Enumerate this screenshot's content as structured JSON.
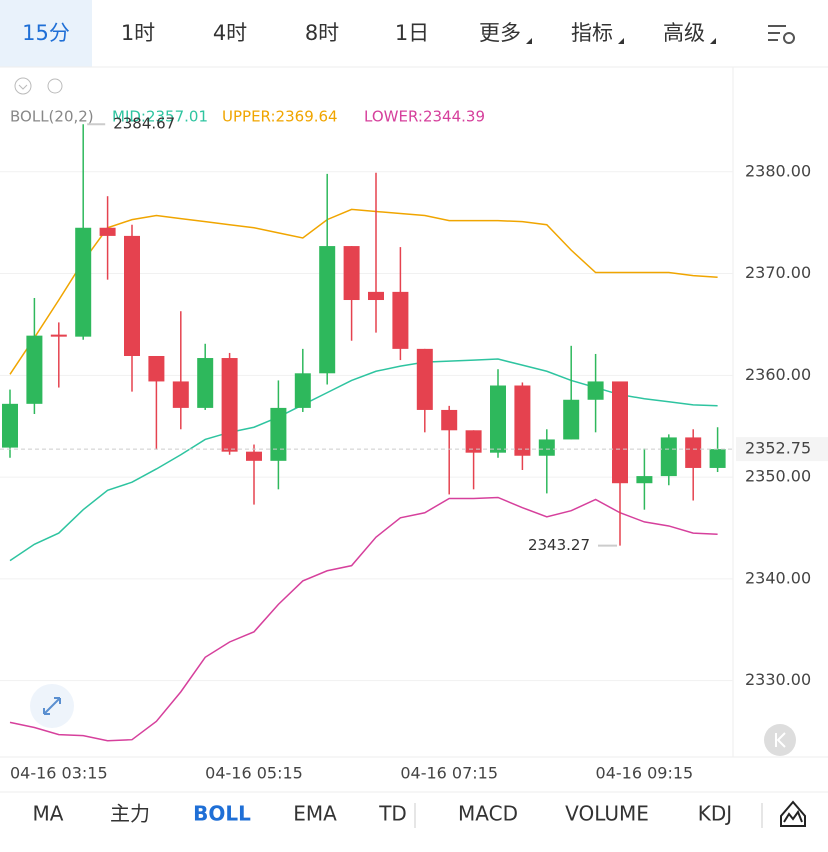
{
  "tabs": [
    "15分",
    "1时",
    "4时",
    "8时",
    "1日",
    "更多",
    "指标",
    "高级"
  ],
  "indicators": [
    "MA",
    "主力",
    "BOLL",
    "EMA",
    "TD",
    "MACD",
    "VOLUME",
    "KDJ"
  ],
  "chart_data": {
    "type": "candlestick",
    "indicator_label": "BOLL(20,2)",
    "categories": [
      null,
      null,
      "04-16 03:15",
      null,
      null,
      null,
      null,
      null,
      null,
      null,
      "04-16 05:15",
      null,
      null,
      null,
      null,
      null,
      null,
      null,
      "04-16 07:15",
      null,
      null,
      null,
      null,
      null,
      null,
      null,
      "04-16 09:15",
      null,
      null,
      null
    ],
    "open": [
      2352.9,
      2357.2,
      2364.0,
      2363.8,
      2374.5,
      2373.7,
      2361.9,
      2359.4,
      2356.8,
      2361.7,
      2352.5,
      2351.6,
      2356.8,
      2360.2,
      2372.7,
      2368.2,
      2368.2,
      2362.6,
      2356.6,
      2354.6,
      2352.4,
      2359.0,
      2352.1,
      2353.7,
      2357.6,
      2359.4,
      2349.4,
      2350.1,
      2353.9,
      2350.9
    ],
    "high": [
      2358.6,
      2367.6,
      2365.2,
      2384.67,
      2377.6,
      2374.8,
      2361.9,
      2366.3,
      2363.1,
      2362.2,
      2353.2,
      2359.5,
      2362.6,
      2379.8,
      2372.7,
      2379.9,
      2372.6,
      2362.6,
      2357.0,
      2354.6,
      2360.6,
      2359.3,
      2354.7,
      2362.9,
      2362.1,
      2359.4,
      2352.8,
      2354.2,
      2354.7,
      2354.9
    ],
    "low": [
      2351.9,
      2356.2,
      2358.8,
      2363.5,
      2369.4,
      2358.4,
      2352.7,
      2354.7,
      2356.6,
      2352.2,
      2347.3,
      2348.8,
      2356.4,
      2359.1,
      2363.4,
      2364.2,
      2361.5,
      2354.4,
      2348.3,
      2348.8,
      2351.9,
      2350.7,
      2348.4,
      2353.7,
      2354.4,
      2343.27,
      2346.8,
      2349.2,
      2347.7,
      2350.5
    ],
    "close": [
      2357.2,
      2363.9,
      2363.8,
      2374.5,
      2373.7,
      2361.9,
      2359.4,
      2356.8,
      2361.7,
      2352.5,
      2351.6,
      2356.8,
      2360.2,
      2372.7,
      2367.4,
      2367.4,
      2362.6,
      2356.6,
      2354.6,
      2352.4,
      2359.0,
      2352.1,
      2353.7,
      2357.6,
      2359.4,
      2349.4,
      2350.1,
      2353.9,
      2350.9,
      2352.75
    ],
    "up_color": "#2eb85c",
    "down_color": "#e5424f",
    "series": [
      {
        "name": "MID:2357.01",
        "color": "#2ec4a0",
        "values": [
          2341.8,
          2343.4,
          2344.5,
          2346.8,
          2348.7,
          2349.5,
          2350.8,
          2352.2,
          2353.7,
          2354.4,
          2354.9,
          2355.9,
          2357.1,
          2358.3,
          2359.5,
          2360.4,
          2360.9,
          2361.3,
          2361.4,
          2361.5,
          2361.6,
          2361.0,
          2360.4,
          2359.5,
          2358.8,
          2358.1,
          2357.7,
          2357.4,
          2357.1,
          2357.01
        ]
      },
      {
        "name": "UPPER:2369.64",
        "color": "#f0a500",
        "values": [
          2360.1,
          2363.7,
          2367.4,
          2371.2,
          2374.5,
          2375.3,
          2375.7,
          2375.4,
          2375.1,
          2374.8,
          2374.5,
          2374.0,
          2373.5,
          2375.3,
          2376.3,
          2376.1,
          2375.9,
          2375.7,
          2375.2,
          2375.2,
          2375.2,
          2375.1,
          2374.8,
          2372.3,
          2370.1,
          2370.1,
          2370.1,
          2370.1,
          2369.8,
          2369.64
        ]
      },
      {
        "name": "LOWER:2344.39",
        "color": "#d6409c",
        "values": [
          2325.9,
          2325.4,
          2324.7,
          2324.6,
          2324.1,
          2324.2,
          2326.0,
          2328.9,
          2332.3,
          2333.8,
          2334.8,
          2337.5,
          2339.8,
          2340.8,
          2341.3,
          2344.1,
          2346.0,
          2346.5,
          2347.9,
          2347.9,
          2348.0,
          2347.0,
          2346.1,
          2346.7,
          2347.8,
          2346.5,
          2345.6,
          2345.2,
          2344.5,
          2344.39
        ]
      }
    ],
    "ylim": [
      2322.5,
      2390
    ],
    "yticks": [
      {
        "value": 2330,
        "label": "2330.00"
      },
      {
        "value": 2340,
        "label": "2340.00"
      },
      {
        "value": 2350,
        "label": "2350.00"
      },
      {
        "value": 2360,
        "label": "2360.00"
      },
      {
        "value": 2370,
        "label": "2370.00"
      },
      {
        "value": 2380,
        "label": "2380.00"
      }
    ],
    "grid": true,
    "max_label": 2384.67,
    "min_label": 2343.27,
    "last_price": 2352.75
  }
}
